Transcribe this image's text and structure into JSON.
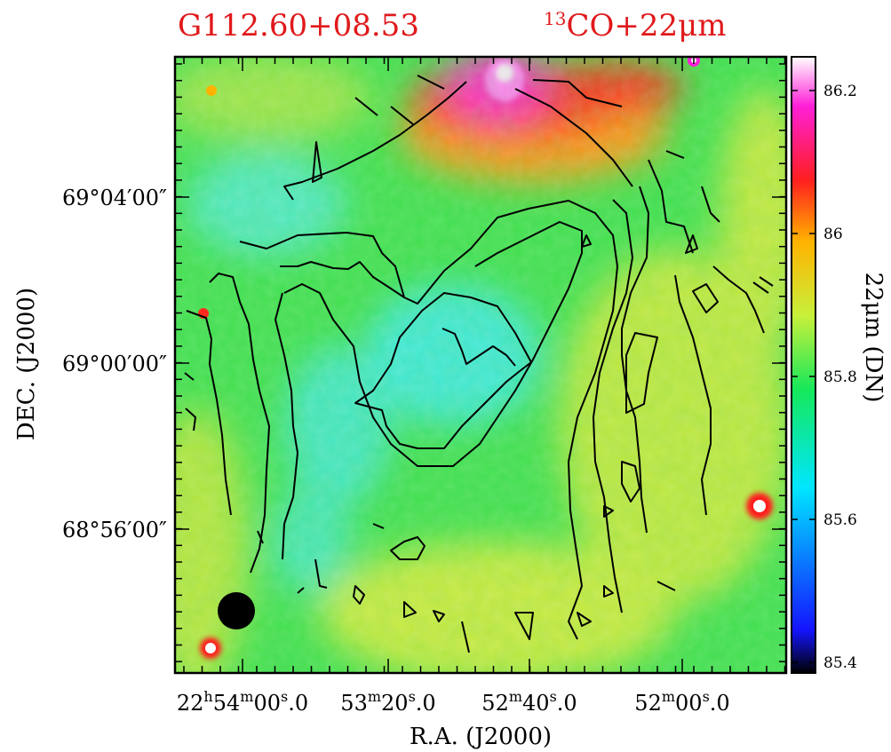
{
  "figure": {
    "source_name": "G112.60+08.53",
    "overlay_label": "13CO+22μm",
    "overlay_label_sup": "13",
    "overlay_label_rest": "CO+22μm",
    "xlabel": "R.A. (J2000)",
    "ylabel": "DEC. (J2000)",
    "colorbar_label": "22μm (DN)",
    "colors": {
      "title": "#e0191b",
      "contour": "#000000",
      "beam": "#000000"
    }
  },
  "chart_data": {
    "type": "heatmap",
    "title": "G112.60+08.53",
    "subtitle": "13CO+22μm",
    "xlabel": "R.A. (J2000)",
    "ylabel": "DEC. (J2000)",
    "x_ticks": [
      {
        "h": "22",
        "m": "54",
        "s": "00",
        "frac": ".0"
      },
      {
        "h": "",
        "m": "53",
        "s": "20",
        "frac": ".0"
      },
      {
        "h": "",
        "m": "52",
        "s": "40",
        "frac": ".0"
      },
      {
        "h": "",
        "m": "52",
        "s": "00",
        "frac": ".0"
      }
    ],
    "y_ticks": [
      "69°04′00″",
      "69°00′00″",
      "68°56′00″"
    ],
    "colorbar": {
      "label": "22μm (DN)",
      "range": [
        85.4,
        86.25
      ],
      "ticks": [
        "86.2",
        "86",
        "85.8",
        "85.6",
        "85.4"
      ],
      "tick_values": [
        86.2,
        86.0,
        85.8,
        85.6,
        85.4
      ],
      "colormap": [
        "#000000",
        "#1414ff",
        "#00e6ff",
        "#16e85a",
        "#c8f03a",
        "#ffb300",
        "#ff1f1f",
        "#ff1fd8",
        "#ffffff"
      ]
    },
    "contours": "13CO integrated intensity",
    "beam": "filled circle, lower-left"
  }
}
